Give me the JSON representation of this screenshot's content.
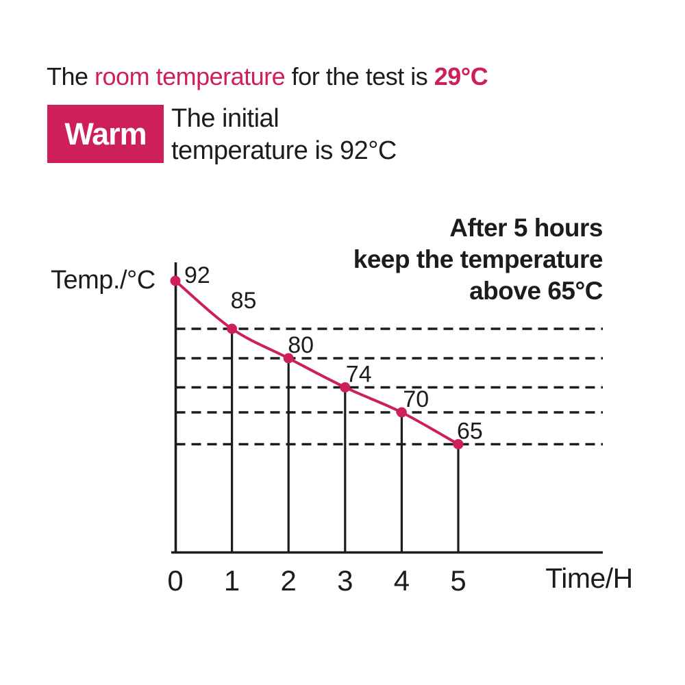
{
  "colors": {
    "accent": "#CE2058",
    "text": "#1D1B1B",
    "badge_text": "#FFFFFF",
    "background": "#FFFFFF"
  },
  "header": {
    "prefix": "The ",
    "highlight": "room temperature",
    "middle": " for the test is ",
    "value": "29°C"
  },
  "badge": {
    "label": "Warm"
  },
  "subtitle": {
    "line1": "The initial",
    "line2": "temperature is 92°C"
  },
  "annotation": {
    "line1": "After 5 hours",
    "line2": "keep the temperature",
    "line3": "above 65°C"
  },
  "chart_data": {
    "type": "line",
    "x": [
      0,
      1,
      2,
      3,
      4,
      5
    ],
    "y": [
      92,
      85,
      80,
      74,
      70,
      65
    ],
    "point_labels": [
      "92",
      "85",
      "80",
      "74",
      "70",
      "65"
    ],
    "x_ticks": [
      "0",
      "1",
      "2",
      "3",
      "4",
      "5"
    ],
    "xlabel": "Time/H",
    "ylabel": "Temp./°C",
    "xlim": [
      0,
      5
    ],
    "line_color": "#CE2058",
    "marker": "filled-circle",
    "gridlines": "dashed horizontal line at each data value from 85 down to 65",
    "drop_lines": "solid vertical line from each point (hours 1-5) down to the x-axis",
    "legend": "none"
  }
}
